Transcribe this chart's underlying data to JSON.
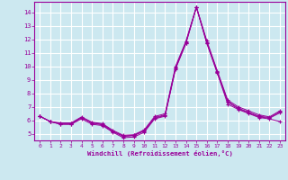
{
  "xlabel": "Windchill (Refroidissement éolien,°C)",
  "ylabel": "",
  "bg_color": "#cce8f0",
  "grid_color": "#aaddcc",
  "line_color": "#990099",
  "xlim": [
    -0.5,
    23.5
  ],
  "ylim": [
    4.5,
    14.8
  ],
  "yticks": [
    5,
    6,
    7,
    8,
    9,
    10,
    11,
    12,
    13,
    14
  ],
  "xticks": [
    0,
    1,
    2,
    3,
    4,
    5,
    6,
    7,
    8,
    9,
    10,
    11,
    12,
    13,
    14,
    15,
    16,
    17,
    18,
    19,
    20,
    21,
    22,
    23
  ],
  "series": [
    [
      6.3,
      5.9,
      5.7,
      5.7,
      6.1,
      5.7,
      5.6,
      5.1,
      4.7,
      4.75,
      5.1,
      6.1,
      6.3,
      9.8,
      11.7,
      14.4,
      11.7,
      9.5,
      7.2,
      6.8,
      6.5,
      6.2,
      6.1,
      5.9
    ],
    [
      6.3,
      5.9,
      5.7,
      5.7,
      6.2,
      5.8,
      5.65,
      5.15,
      4.8,
      4.85,
      5.2,
      6.15,
      6.35,
      9.85,
      11.75,
      14.4,
      11.75,
      9.55,
      7.35,
      6.85,
      6.55,
      6.25,
      6.15,
      6.55
    ],
    [
      6.3,
      5.9,
      5.75,
      5.75,
      6.2,
      5.8,
      5.7,
      5.2,
      4.82,
      4.88,
      5.22,
      6.2,
      6.4,
      9.9,
      11.8,
      14.4,
      11.82,
      9.6,
      7.4,
      6.9,
      6.6,
      6.3,
      6.2,
      6.62
    ],
    [
      6.3,
      5.9,
      5.8,
      5.8,
      6.25,
      5.85,
      5.75,
      5.25,
      4.88,
      4.92,
      5.28,
      6.28,
      6.48,
      10.0,
      11.88,
      14.42,
      11.9,
      9.68,
      7.5,
      7.0,
      6.7,
      6.4,
      6.25,
      6.7
    ]
  ]
}
